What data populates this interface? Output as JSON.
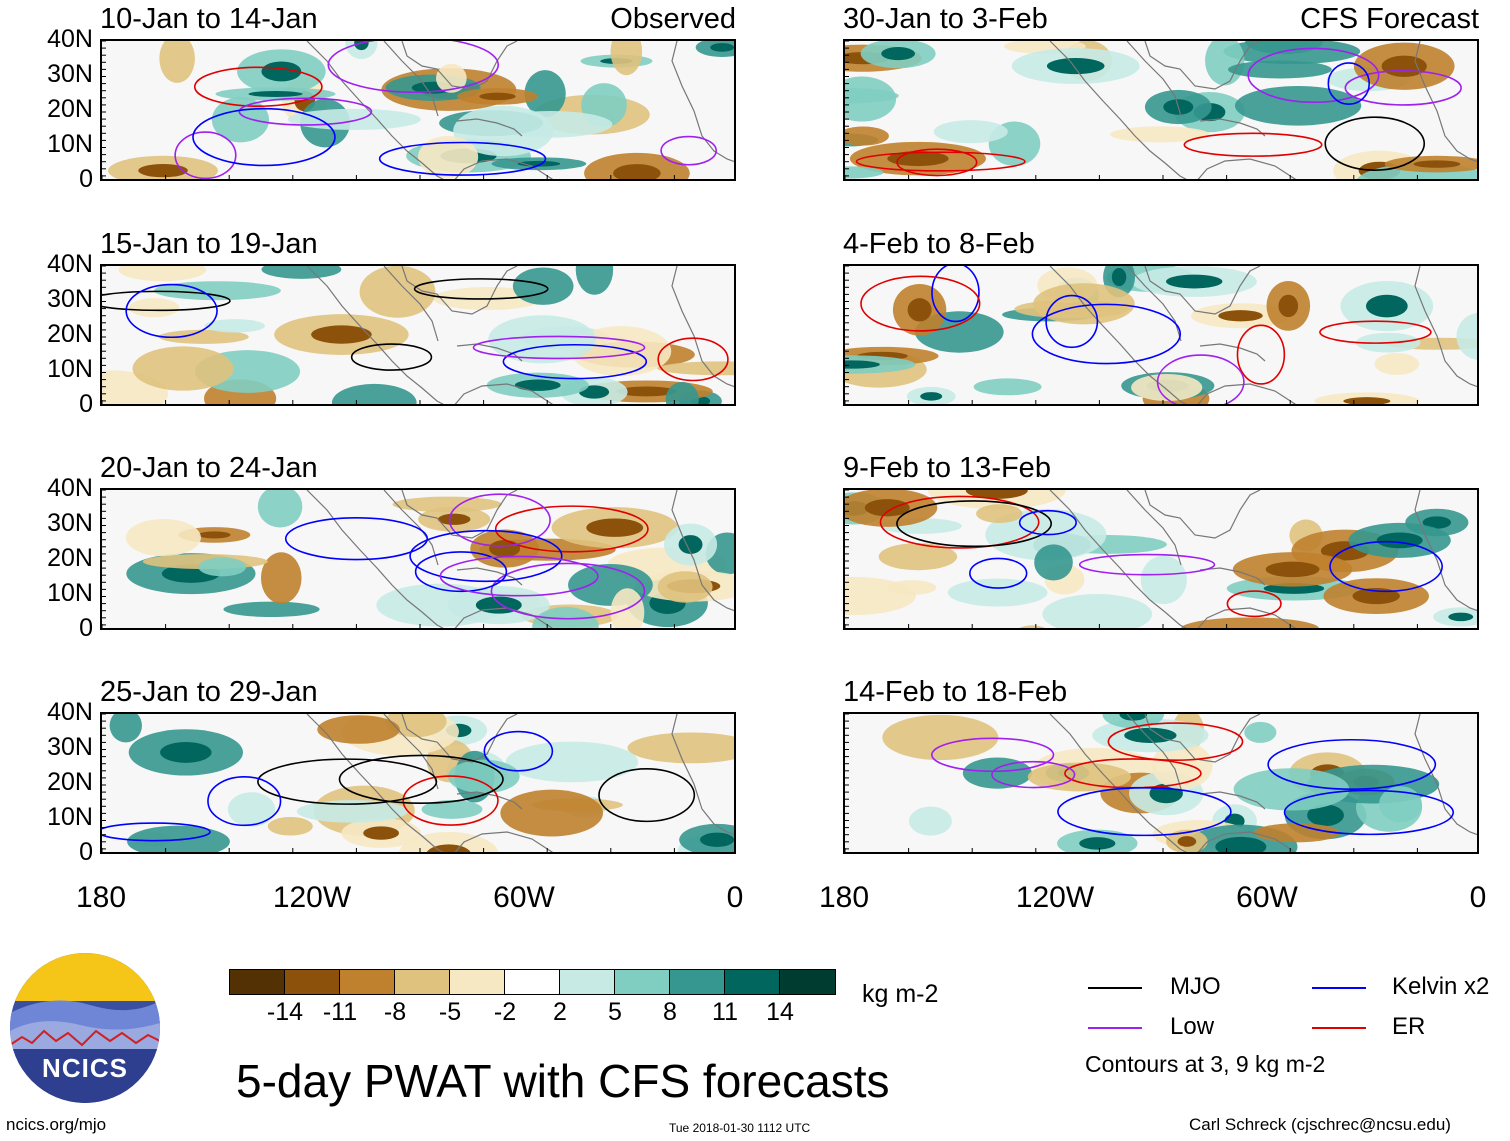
{
  "panels": [
    {
      "title": "10-Jan to 14-Jan",
      "tag": "Observed",
      "seed": 1
    },
    {
      "title": "30-Jan to 3-Feb",
      "tag": "CFS Forecast",
      "seed": 2
    },
    {
      "title": "15-Jan to 19-Jan",
      "tag": "",
      "seed": 3
    },
    {
      "title": "4-Feb to 8-Feb",
      "tag": "",
      "seed": 4
    },
    {
      "title": "20-Jan to 24-Jan",
      "tag": "",
      "seed": 5
    },
    {
      "title": "9-Feb to 13-Feb",
      "tag": "",
      "seed": 6
    },
    {
      "title": "25-Jan to 29-Jan",
      "tag": "",
      "seed": 7
    },
    {
      "title": "14-Feb to 18-Feb",
      "tag": "",
      "seed": 8
    }
  ],
  "y_ticks": [
    "40N",
    "30N",
    "20N",
    "10N",
    "0"
  ],
  "x_ticks": [
    "180",
    "120W",
    "60W",
    "0"
  ],
  "colorbar": {
    "colors": [
      "#543005",
      "#8c510a",
      "#bf812d",
      "#dfc27d",
      "#f6e8c3",
      "#ffffff",
      "#c7eae5",
      "#80cdc1",
      "#35978f",
      "#01665e",
      "#003c30"
    ],
    "labels": [
      "-14",
      "-11",
      "-8",
      "-5",
      "-2",
      "2",
      "5",
      "8",
      "11",
      "14"
    ],
    "units": "kg m-2"
  },
  "title": "5-day PWAT with CFS forecasts",
  "legend": [
    {
      "label": "MJO",
      "color": "#000000"
    },
    {
      "label": "Kelvin x2",
      "color": "#0000ff"
    },
    {
      "label": "Low",
      "color": "#a020f0"
    },
    {
      "label": "ER",
      "color": "#e00000"
    }
  ],
  "contour_note": "Contours at 3, 9 kg m-2",
  "footer": {
    "left": "ncics.org/mjo",
    "center": "Tue 2018-01-30 1112 UTC",
    "right": "Carl Schreck (cjschrec@ncsu.edu)"
  },
  "logo_text": "NCICS"
}
